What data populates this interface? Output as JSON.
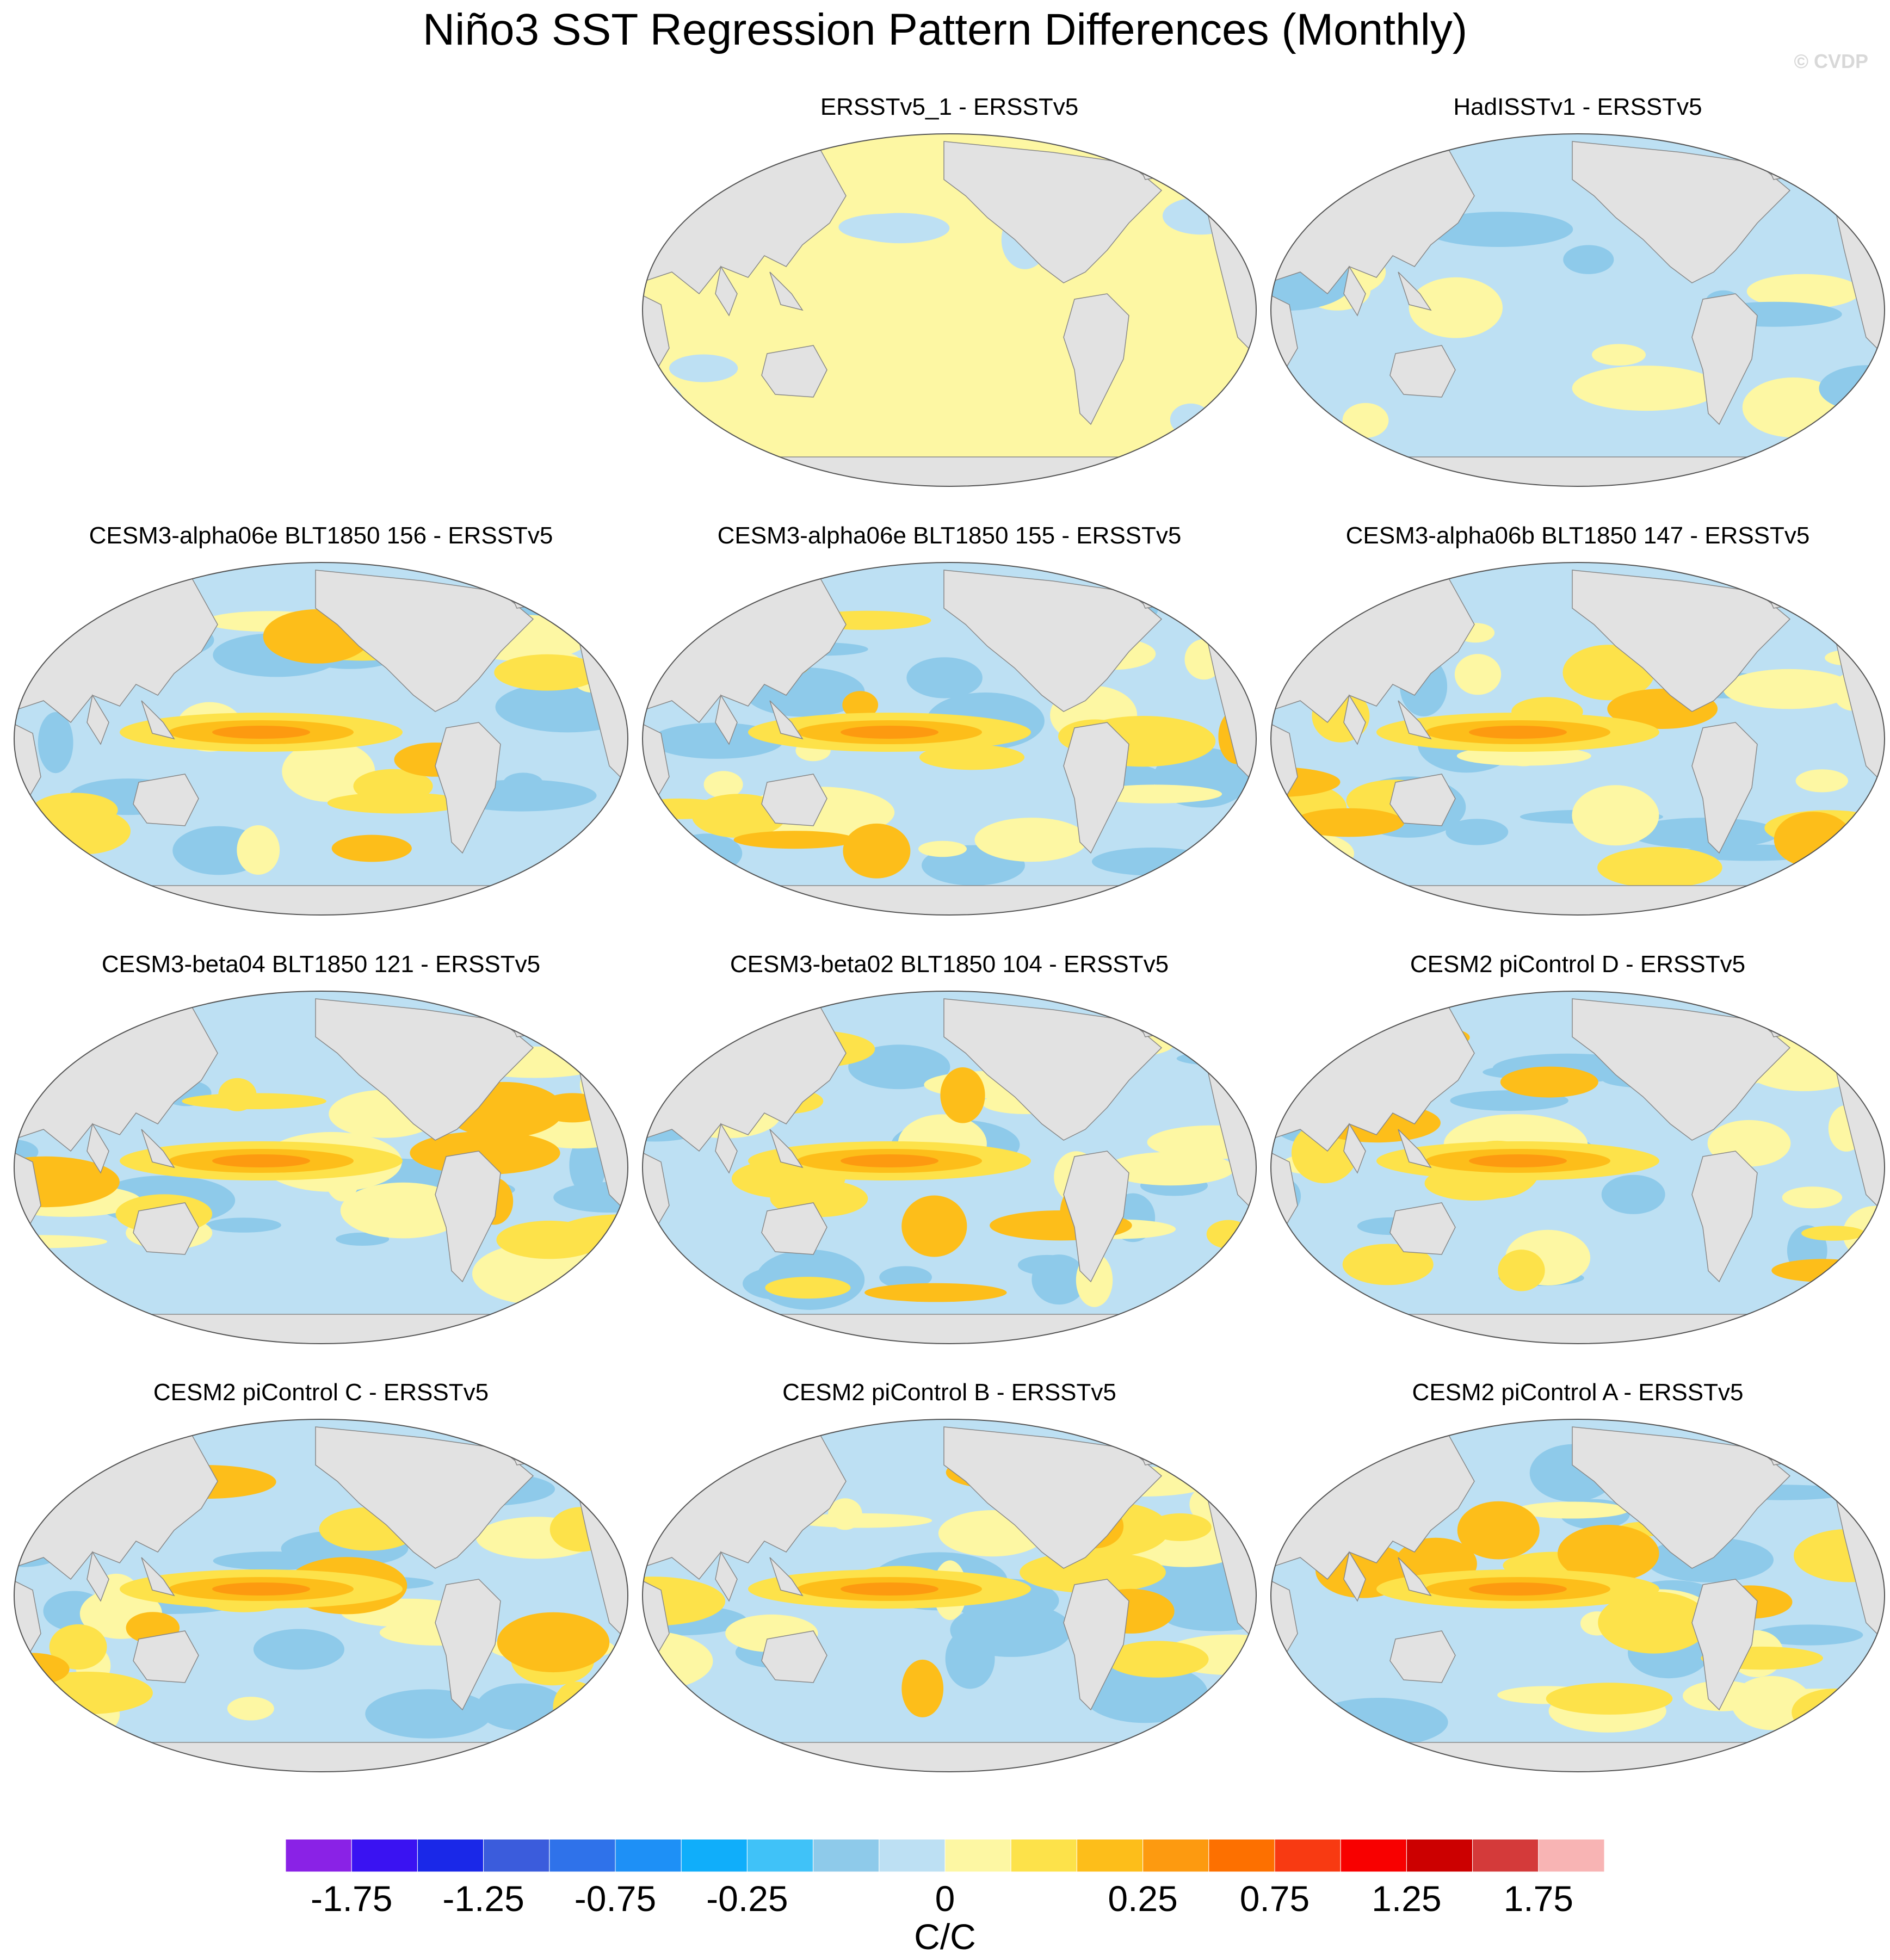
{
  "title": "Niño3 SST Regression Pattern Differences (Monthly)",
  "copyright": "© CVDP",
  "panels": [
    {
      "title": "ERSSTv5_1 - ERSSTv5",
      "pattern": "near-zero"
    },
    {
      "title": "HadISSTv1 - ERSSTv5",
      "pattern": "slightly-negative"
    },
    {
      "title": "CESM3-alpha06e BLT1850 156 - ERSSTv5",
      "pattern": "mixed"
    },
    {
      "title": "CESM3-alpha06e BLT1850 155 - ERSSTv5",
      "pattern": "mixed"
    },
    {
      "title": "CESM3-alpha06b BLT1850 147 - ERSSTv5",
      "pattern": "mixed"
    },
    {
      "title": "CESM3-beta04 BLT1850 121 - ERSSTv5",
      "pattern": "mixed"
    },
    {
      "title": "CESM3-beta02 BLT1850 104 - ERSSTv5",
      "pattern": "mixed"
    },
    {
      "title": "CESM2 piControl D - ERSSTv5",
      "pattern": "mixed"
    },
    {
      "title": "CESM2 piControl C - ERSSTv5",
      "pattern": "mixed"
    },
    {
      "title": "CESM2 piControl B - ERSSTv5",
      "pattern": "mixed"
    },
    {
      "title": "CESM2 piControl A - ERSSTv5",
      "pattern": "mixed"
    }
  ],
  "colorbar": {
    "units": "C/C",
    "colors": [
      "#8a22e6",
      "#3a12f2",
      "#1a28e8",
      "#3b5cdc",
      "#2f72ea",
      "#1e90f6",
      "#10aefa",
      "#40c2f8",
      "#8ecaea",
      "#bde0f3",
      "#fdf7a3",
      "#fde24a",
      "#fdbe1a",
      "#fd9a10",
      "#fd7000",
      "#f83a12",
      "#f80000",
      "#cc0000",
      "#d43a3a",
      "#f8b4b4"
    ],
    "labels": [
      "-1.75",
      "-1.25",
      "-0.75",
      "-0.25",
      "0",
      "0.25",
      "0.75",
      "1.25",
      "1.75"
    ],
    "label_boundaries": [
      1,
      3,
      5,
      7,
      10,
      13,
      15,
      17,
      19
    ]
  },
  "land_color": "#e2e2e2"
}
